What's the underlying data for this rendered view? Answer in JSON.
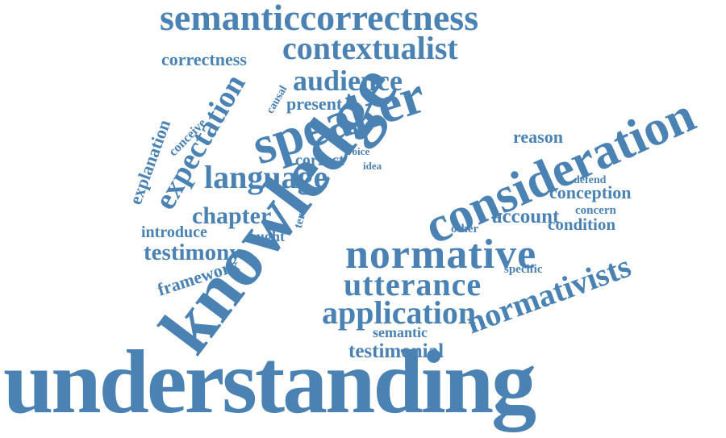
{
  "word_color": "#4a82b4",
  "words": {
    "understanding": "understanding",
    "knowledge": "knowledge",
    "speaker": "speaker",
    "consideration": "consideration",
    "normative": "normative",
    "semanticcorrectness": "semanticcorrectness",
    "contextualist": "contextualist",
    "normativists": "normativists",
    "utterance": "utterance",
    "application": "application",
    "language": "language",
    "expectation": "expectation",
    "audience": "audience",
    "testimony": "testimony",
    "chapter": "chapter",
    "correctness": "correctness",
    "present": "present",
    "conception": "conception",
    "account": "account",
    "testimonial": "testimonial",
    "framework": "framework",
    "explanation": "explanation",
    "reason": "reason",
    "condition": "condition",
    "introduce": "introduce",
    "correct": "correct",
    "ought": "ought",
    "semantic": "semantic",
    "conceive": "conceive",
    "concern": "concern",
    "specific": "specific",
    "defend": "defend",
    "causal": "causal",
    "term": "term",
    "other": "other",
    "voice": "voice",
    "idea": "idea"
  }
}
